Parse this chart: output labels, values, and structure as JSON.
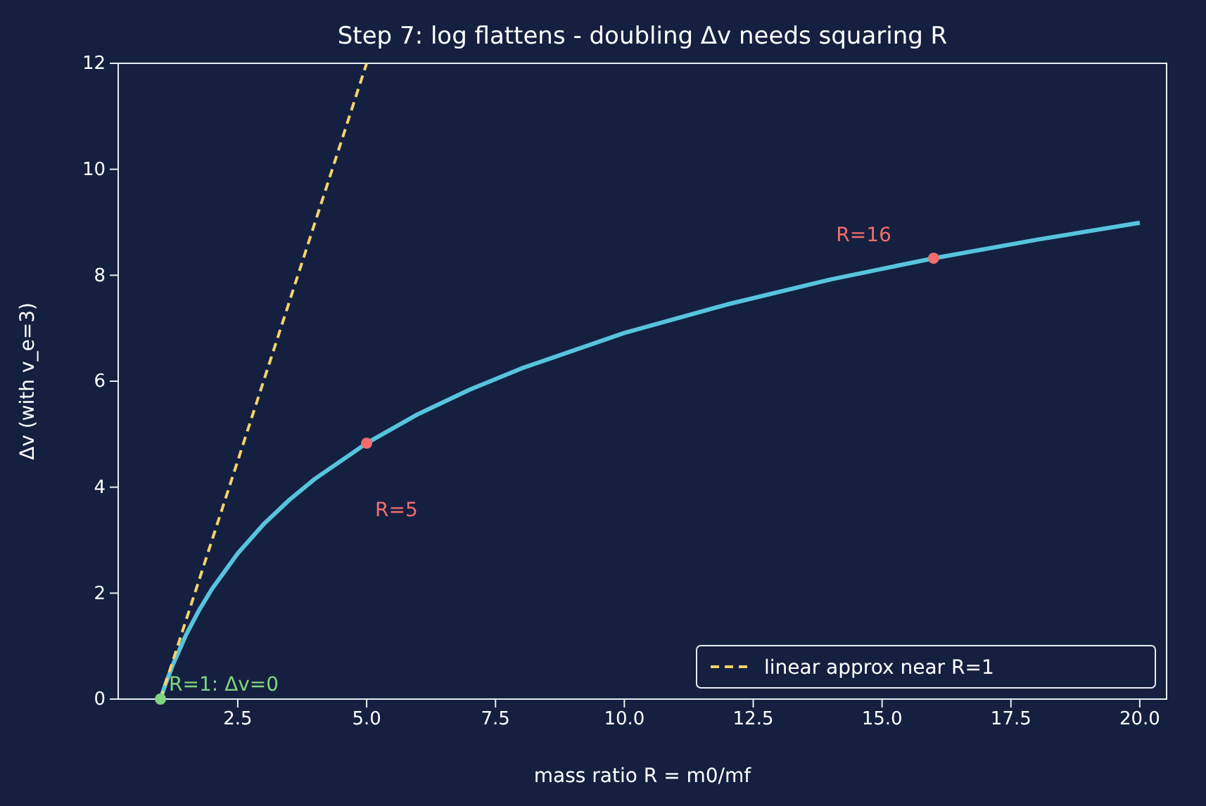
{
  "chart_data": {
    "type": "line",
    "title": "Step 7: log flattens - doubling Δv needs squaring R",
    "xlabel": "mass ratio R = m0/mf",
    "ylabel": "Δv (with v_e=3)",
    "xlim": [
      0.18,
      20.52
    ],
    "ylim": [
      0,
      12
    ],
    "xticks": [
      {
        "value": 2.5,
        "label": "2.5"
      },
      {
        "value": 5,
        "label": "5.0"
      },
      {
        "value": 7.5,
        "label": "7.5"
      },
      {
        "value": 10,
        "label": "10.0"
      },
      {
        "value": 12.5,
        "label": "12.5"
      },
      {
        "value": 15,
        "label": "15.0"
      },
      {
        "value": 17.5,
        "label": "17.5"
      },
      {
        "value": 20,
        "label": "20.0"
      }
    ],
    "yticks": [
      0,
      2,
      4,
      6,
      8,
      10,
      12
    ],
    "grid": false,
    "legend": "bottom right",
    "series": [
      {
        "color": "#56c4dc",
        "marker": "none",
        "line_style": "solid",
        "x": [
          1,
          1.1,
          1.25,
          1.5,
          1.75,
          2,
          2.5,
          3,
          3.5,
          4,
          5,
          6,
          7,
          8,
          10,
          12,
          14,
          16,
          18,
          20
        ],
        "values": [
          0,
          0.29,
          0.67,
          1.22,
          1.68,
          2.08,
          2.75,
          3.3,
          3.76,
          4.16,
          4.83,
          5.38,
          5.84,
          6.24,
          6.91,
          7.45,
          7.92,
          8.32,
          8.67,
          8.99
        ]
      },
      {
        "name": "linear approx near R=1",
        "color": "#f5d36a",
        "marker": "none",
        "line_style": "dashed",
        "x": [
          1,
          5
        ],
        "values": [
          0,
          12
        ]
      },
      {
        "type": "scatter",
        "color": "#f26d6d",
        "marker": "circle",
        "x": [
          5,
          16
        ],
        "values": [
          4.83,
          8.32
        ]
      },
      {
        "type": "scatter",
        "color": "#7fd67f",
        "marker": "circle",
        "x": [
          1
        ],
        "values": [
          0
        ]
      }
    ],
    "annotations": [
      {
        "text": "R=1: Δv=0",
        "x": 1,
        "y": 0
      },
      {
        "text": "R=5",
        "x": 5,
        "y": 4.83
      },
      {
        "text": "R=16",
        "x": 16,
        "y": 8.32
      }
    ]
  }
}
